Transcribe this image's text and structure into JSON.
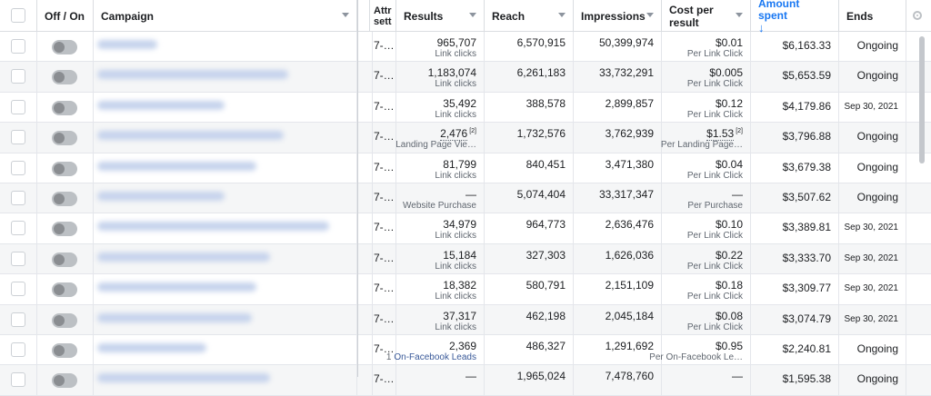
{
  "header": {
    "off_on": "Off / On",
    "campaign": "Campaign",
    "attribution": "Attr sett",
    "results": "Results",
    "reach": "Reach",
    "impressions": "Impressions",
    "cost_per_result": "Cost per result",
    "amount_spent": "Amount spent",
    "sort_arrow": "↓",
    "ends": "Ends"
  },
  "rows": [
    {
      "attr": "7-…",
      "results": "965,707",
      "results_sub": "Link clicks",
      "reach": "6,570,915",
      "impressions": "50,399,974",
      "cpr": "$0.01",
      "cpr_sub": "Per Link Click",
      "spent": "$6,163.33",
      "ends": "Ongoing"
    },
    {
      "attr": "7-…",
      "results": "1,183,074",
      "results_sub": "Link clicks",
      "reach": "6,261,183",
      "impressions": "33,732,291",
      "cpr": "$0.005",
      "cpr_sub": "Per Link Click",
      "spent": "$5,653.59",
      "ends": "Ongoing"
    },
    {
      "attr": "7-…",
      "results": "35,492",
      "results_sub": "Link clicks",
      "reach": "388,578",
      "impressions": "2,899,857",
      "cpr": "$0.12",
      "cpr_sub": "Per Link Click",
      "spent": "$4,179.86",
      "ends": "Sep 30, 2021"
    },
    {
      "attr": "7-…",
      "results": "2,476",
      "results_sup": "[2]",
      "results_sub": "Landing Page Vie…",
      "reach": "1,732,576",
      "impressions": "3,762,939",
      "cpr": "$1.53",
      "cpr_sup": "[2]",
      "cpr_sub": "Per Landing Page…",
      "spent": "$3,796.88",
      "ends": "Ongoing"
    },
    {
      "attr": "7-…",
      "results": "81,799",
      "results_sub": "Link clicks",
      "reach": "840,451",
      "impressions": "3,471,380",
      "cpr": "$0.04",
      "cpr_sub": "Per Link Click",
      "spent": "$3,679.38",
      "ends": "Ongoing"
    },
    {
      "attr": "7-…",
      "results": "—",
      "results_sub": "Website Purchase",
      "reach": "5,074,404",
      "impressions": "33,317,347",
      "cpr": "—",
      "cpr_sub": "Per Purchase",
      "spent": "$3,507.62",
      "ends": "Ongoing"
    },
    {
      "attr": "7-…",
      "results": "34,979",
      "results_sub": "Link clicks",
      "reach": "964,773",
      "impressions": "2,636,476",
      "cpr": "$0.10",
      "cpr_sub": "Per Link Click",
      "spent": "$3,389.81",
      "ends": "Sep 30, 2021"
    },
    {
      "attr": "7-…",
      "results": "15,184",
      "results_sub": "Link clicks",
      "reach": "327,303",
      "impressions": "1,626,036",
      "cpr": "$0.22",
      "cpr_sub": "Per Link Click",
      "spent": "$3,333.70",
      "ends": "Sep 30, 2021"
    },
    {
      "attr": "7-…",
      "results": "18,382",
      "results_sub": "Link clicks",
      "reach": "580,791",
      "impressions": "2,151,109",
      "cpr": "$0.18",
      "cpr_sub": "Per Link Click",
      "spent": "$3,309.77",
      "ends": "Sep 30, 2021"
    },
    {
      "attr": "7-…",
      "results": "37,317",
      "results_sub": "Link clicks",
      "reach": "462,198",
      "impressions": "2,045,184",
      "cpr": "$0.08",
      "cpr_sub": "Per Link Click",
      "spent": "$3,074.79",
      "ends": "Sep 30, 2021"
    },
    {
      "attr": "7-…",
      "results": "2,369",
      "results_sub": "On-Facebook Leads",
      "results_sub_prefix": "1",
      "reach": "486,327",
      "impressions": "1,291,692",
      "cpr": "$0.95",
      "cpr_sub": "Per On-Facebook Le…",
      "spent": "$2,240.81",
      "ends": "Ongoing"
    },
    {
      "attr": "7-…",
      "results": "—",
      "results_sub": "",
      "reach": "1,965,024",
      "impressions": "7,478,760",
      "cpr": "—",
      "cpr_sub": "",
      "spent": "$1,595.38",
      "ends": "Ongoing"
    }
  ],
  "colors": {
    "accent": "#1877f2",
    "border": "#dadde1",
    "alt_row": "#f5f6f7"
  }
}
